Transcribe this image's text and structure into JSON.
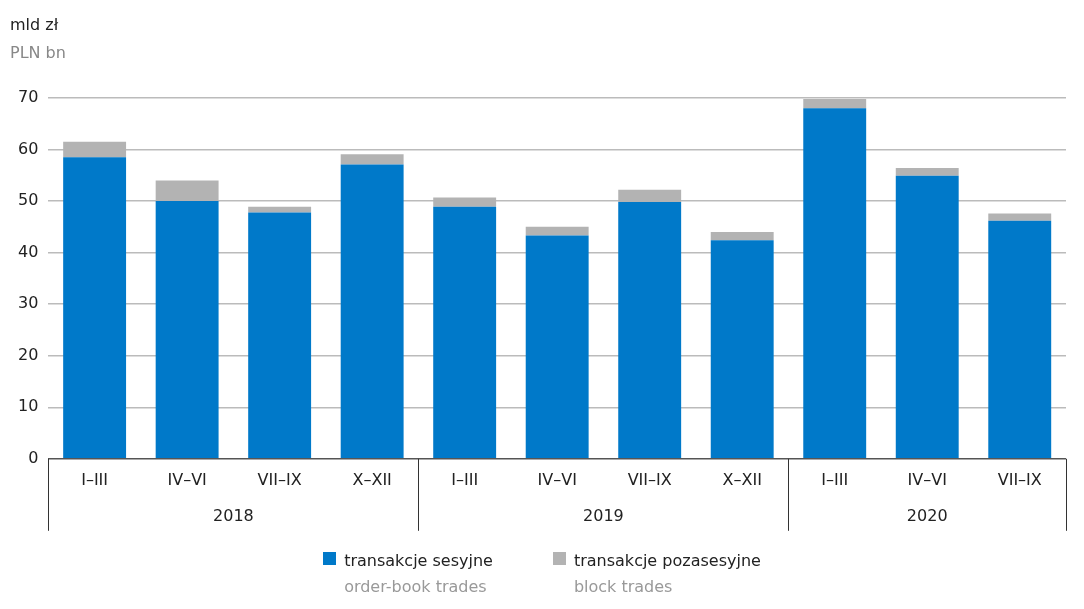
{
  "chart_data": {
    "type": "bar",
    "stacked": true,
    "ylabel": "mld zł\nPLN bn",
    "categories": [
      "I–III",
      "IV–VI",
      "VII–IX",
      "X–XII",
      "I–III",
      "IV–VI",
      "VII–IX",
      "X–XII",
      "I–III",
      "IV–VI",
      "VII–IX"
    ],
    "annotations": [
      "2018",
      "2019",
      "2020"
    ],
    "series": [
      {
        "name": "transakcje sesyjne\norder-book trades",
        "color": "#0079c9",
        "values": [
          58.5,
          50.0,
          47.8,
          57.1,
          48.9,
          43.3,
          49.8,
          42.4,
          68.0,
          54.9,
          46.2
        ]
      },
      {
        "name": "transakcje pozasesyjne\nblock trades",
        "color": "#b3b3b3",
        "values": [
          3.0,
          4.0,
          1.1,
          2.0,
          1.8,
          1.7,
          2.4,
          1.6,
          1.8,
          1.5,
          1.4
        ]
      }
    ],
    "ylim": [
      0,
      70
    ],
    "yticks": [
      0,
      10,
      20,
      30,
      40,
      50,
      60,
      70
    ],
    "grid": "y",
    "legend": "bottom"
  }
}
